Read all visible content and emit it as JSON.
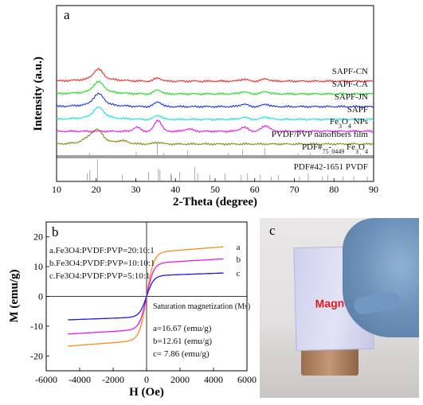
{
  "chart_data": [
    {
      "type": "line",
      "panel": "a",
      "xlabel": "2-Theta (degree)",
      "ylabel": "Intensity (a.u.)",
      "xlim": [
        10,
        90
      ],
      "x_ticks": [
        10,
        20,
        30,
        40,
        50,
        60,
        70,
        80,
        90
      ],
      "series": [
        {
          "name": "SAPF-CN",
          "color": "#ff2a2a",
          "offset": 93,
          "peaks": [
            [
              20.5,
              12,
              1.2
            ],
            [
              35.6,
              4,
              0.9
            ],
            [
              57.2,
              2.5,
              1.0
            ],
            [
              62.8,
              3,
              0.9
            ]
          ]
        },
        {
          "name": "SAPF-CA",
          "color": "#22dd22",
          "offset": 77,
          "peaks": [
            [
              20.6,
              12,
              1.3
            ],
            [
              35.6,
              5,
              0.9
            ],
            [
              57.2,
              2.5,
              1.0
            ],
            [
              62.8,
              3,
              0.9
            ]
          ]
        },
        {
          "name": "SAPF-JN",
          "color": "#2233ee",
          "offset": 61,
          "peaks": [
            [
              20.6,
              13,
              1.3
            ],
            [
              35.6,
              6,
              0.9
            ],
            [
              57.2,
              3,
              1.0
            ],
            [
              62.8,
              3,
              0.9
            ]
          ]
        },
        {
          "name": "SAPF",
          "color": "#22e0e0",
          "offset": 45,
          "peaks": [
            [
              20.6,
              12,
              1.3
            ],
            [
              35.6,
              5,
              0.9
            ],
            [
              57.2,
              2.5,
              1.0
            ],
            [
              62.8,
              3,
              0.9
            ]
          ]
        },
        {
          "name": "Fe3O4 NPs",
          "color": "#e01fe0",
          "offset": 30,
          "peaks": [
            [
              30.2,
              5,
              0.9
            ],
            [
              35.6,
              14,
              0.9
            ],
            [
              43.3,
              3,
              1.0
            ],
            [
              57.2,
              5,
              1.0
            ],
            [
              62.8,
              7,
              1.0
            ]
          ]
        },
        {
          "name": "PVDF/PVP nanofibers film",
          "color": "#8a8a22",
          "offset": 14,
          "peaks": [
            [
              18.5,
              6,
              1.6
            ],
            [
              20.5,
              12,
              1.3
            ],
            [
              26.6,
              3,
              1.4
            ],
            [
              35.6,
              2,
              1.0
            ]
          ]
        }
      ],
      "reference_patterns": [
        {
          "name": "PDF#75-0449 Fe3O4",
          "lines": [
            18.3,
            30.1,
            35.4,
            37.1,
            43.1,
            53.4,
            56.9,
            62.5,
            71.0,
            74.0,
            79.0,
            86.7
          ]
        },
        {
          "name": "PDF#42-1651 PVDF",
          "lines": [
            17.7,
            18.4,
            20.3,
            26.6,
            33.2,
            35.7,
            36.1,
            38.8,
            39.0,
            41.1,
            44.9,
            45.6,
            48.7,
            52.5,
            56.6,
            58.2,
            61.4,
            64.2,
            66.0,
            71.3,
            73.5,
            77.1,
            78.4,
            82.3,
            85.0,
            88.4
          ]
        }
      ]
    },
    {
      "type": "line",
      "panel": "b",
      "xlabel": "H (Oe)",
      "ylabel": "M (emu/g)",
      "xlim": [
        -6000,
        6000
      ],
      "ylim": [
        -25,
        25
      ],
      "x_ticks": [
        -6000,
        -4000,
        -2000,
        0,
        2000,
        4000,
        6000
      ],
      "y_ticks": [
        20,
        10,
        0,
        -10,
        -20
      ],
      "series": [
        {
          "name": "a",
          "color": "#ff8c1a",
          "Ms": 16.67,
          "H_range": [
            -4700,
            4600
          ]
        },
        {
          "name": "b",
          "color": "#f018e0",
          "Ms": 12.61,
          "H_range": [
            -4700,
            4600
          ]
        },
        {
          "name": "c",
          "color": "#1a1ae8",
          "Ms": 7.86,
          "H_range": [
            -4700,
            4600
          ]
        }
      ],
      "legend": [
        "a.Fe3O4:PVDF:PVP=20:10:1",
        "b.Fe3O4:PVDF:PVP=10:10:1",
        "c.Fe3O4:PVDF:PVP=5:10:1"
      ],
      "annotation_title": "Saturation magnetization (Ms)",
      "annotations": [
        "a=16.67  (emu/g)",
        "b=12.61  (emu/g)",
        "c= 7.86  (emu/g)"
      ]
    }
  ],
  "photo": {
    "panel": "c",
    "label": "Magnet"
  }
}
